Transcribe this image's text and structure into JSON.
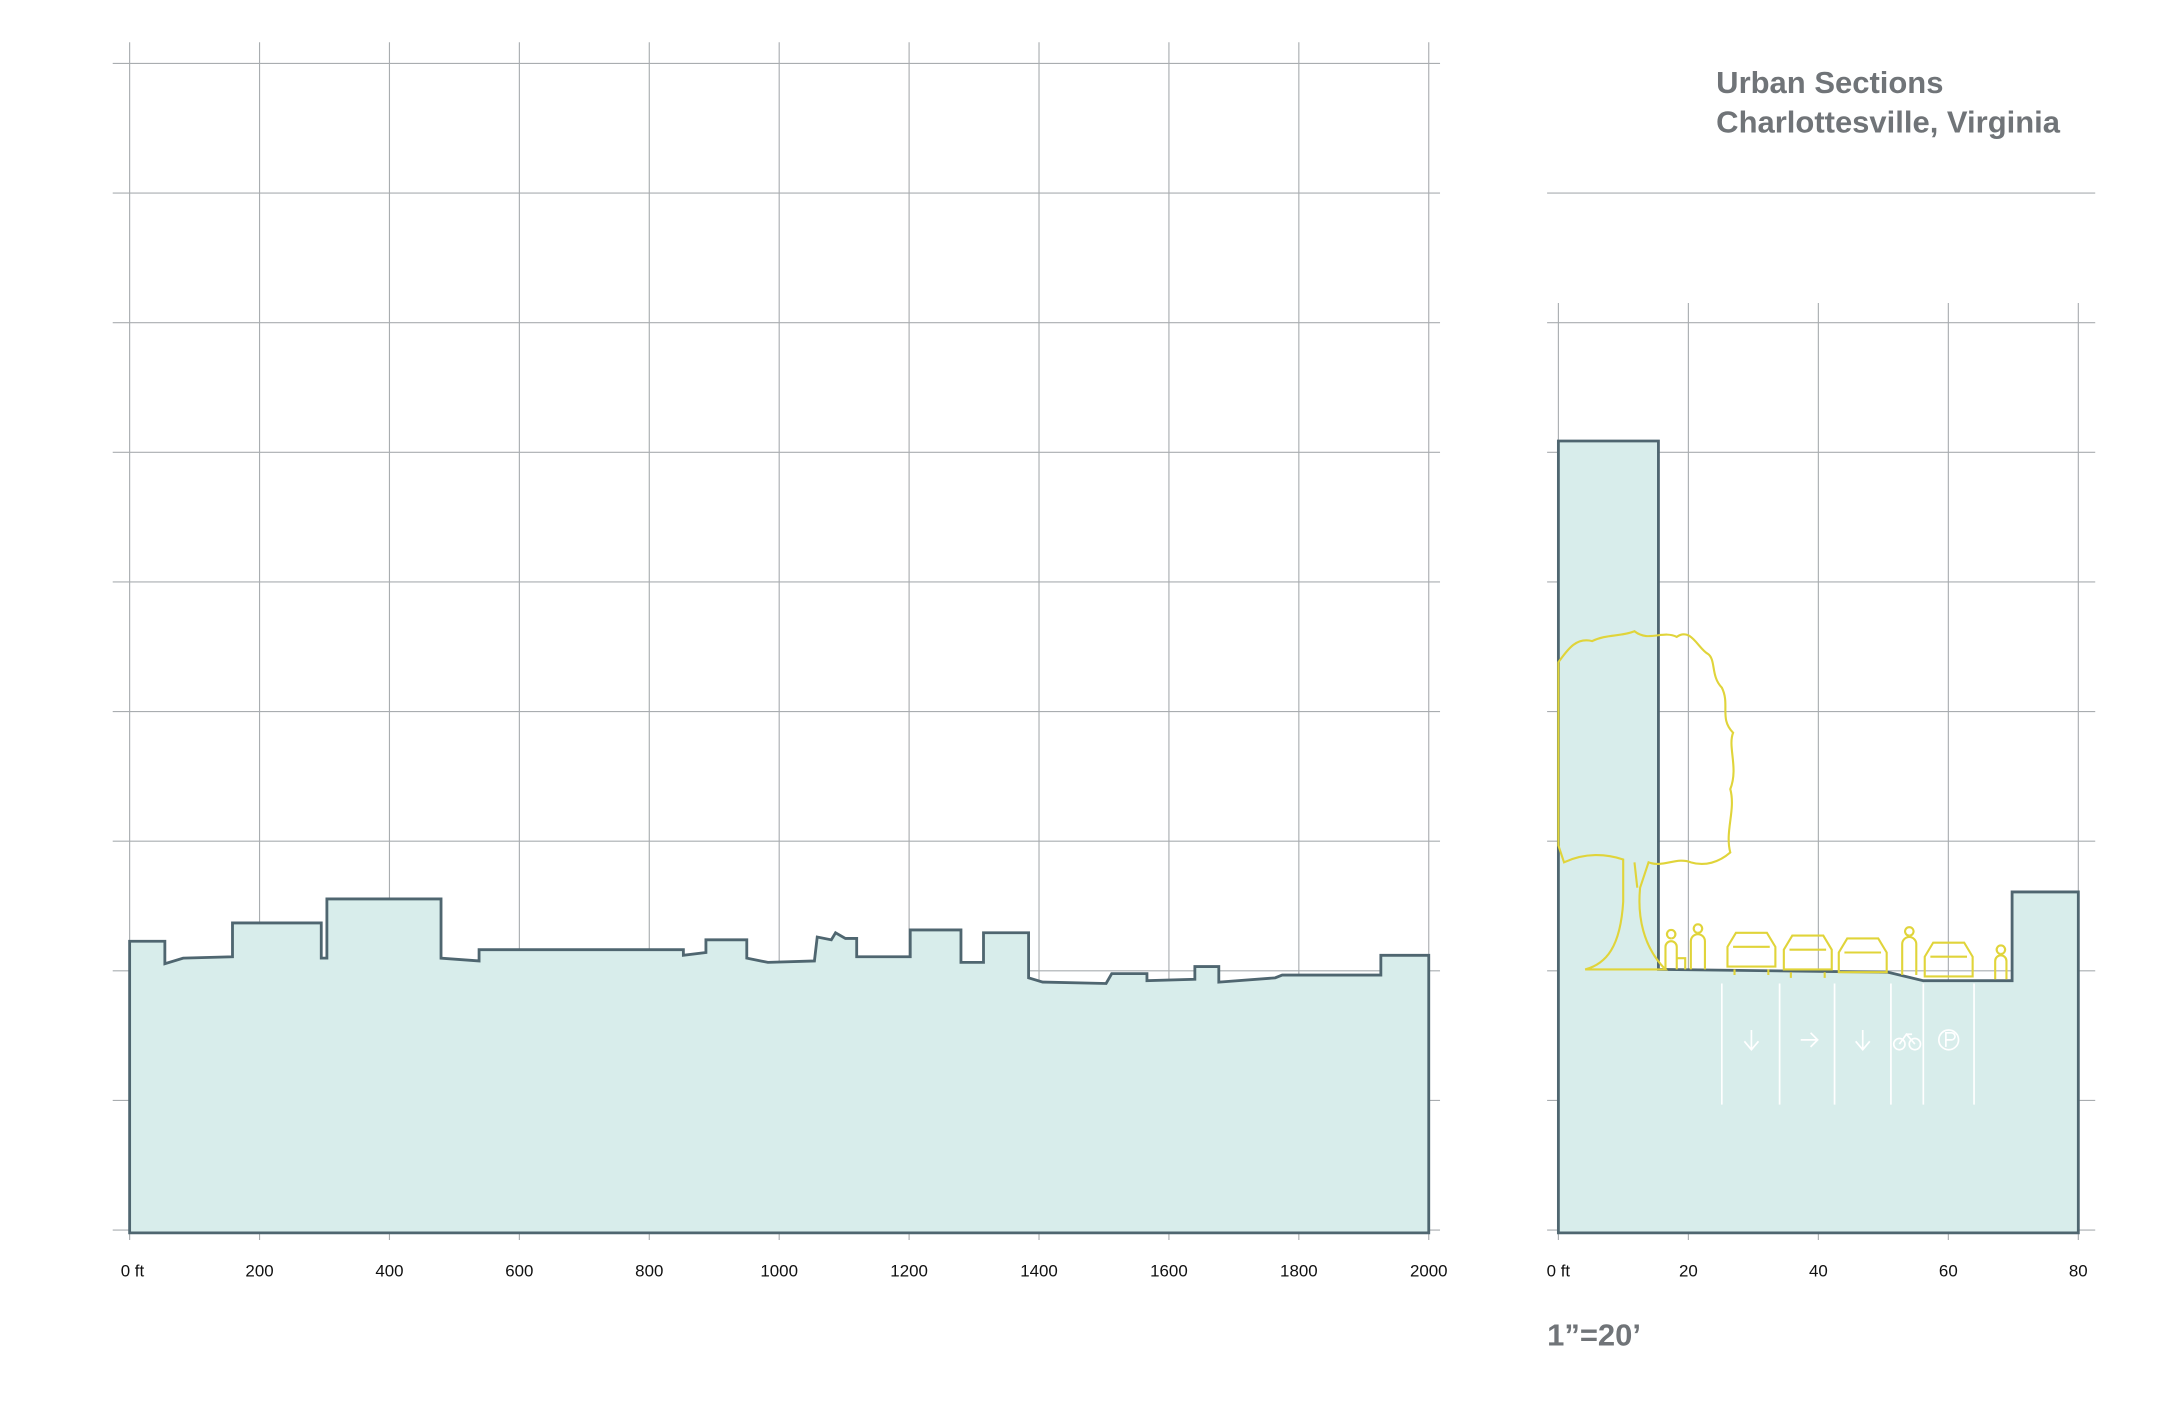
{
  "title": [
    "Urban Sections",
    "Charlottesville, Virginia"
  ],
  "left_axis_labels": [
    "0 ft",
    "200",
    "400",
    "600",
    "800",
    "1000",
    "1200",
    "1400",
    "1600",
    "1800",
    "2000"
  ],
  "right_axis_labels": [
    "0 ft",
    "20",
    "40",
    "60",
    "80"
  ],
  "scale_note": "1”=20’"
}
